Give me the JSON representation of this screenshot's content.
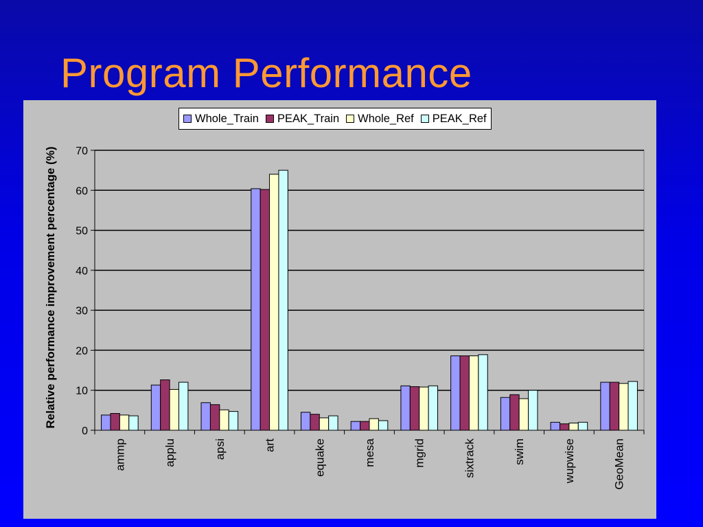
{
  "slide": {
    "title": "Program Performance"
  },
  "chart_data": {
    "type": "bar",
    "title": "",
    "xlabel": "",
    "ylabel": "Relative performance improvement percentage (%)",
    "ylim": [
      0,
      70
    ],
    "yticks": [
      0,
      10,
      20,
      30,
      40,
      50,
      60,
      70
    ],
    "grid": true,
    "legend_position": "top",
    "categories": [
      "ammp",
      "applu",
      "apsi",
      "art",
      "equake",
      "mesa",
      "mgrid",
      "sixtrack",
      "swim",
      "wupwise",
      "GeoMean"
    ],
    "series": [
      {
        "name": "Whole_Train",
        "color": "#9999ff",
        "values": [
          3.8,
          11.3,
          6.9,
          60.4,
          4.5,
          2.2,
          11.1,
          18.6,
          8.2,
          2.0,
          12.0
        ]
      },
      {
        "name": "PEAK_Train",
        "color": "#993366",
        "values": [
          4.2,
          12.6,
          6.4,
          60.2,
          4.0,
          2.2,
          10.9,
          18.6,
          8.9,
          1.6,
          12.0
        ]
      },
      {
        "name": "Whole_Ref",
        "color": "#ffffcc",
        "values": [
          3.8,
          10.2,
          5.1,
          64.0,
          3.1,
          2.9,
          10.8,
          18.6,
          7.9,
          1.8,
          11.7
        ]
      },
      {
        "name": "PEAK_Ref",
        "color": "#ccffff",
        "values": [
          3.6,
          12.0,
          4.7,
          65.0,
          3.6,
          2.4,
          11.1,
          18.9,
          10.0,
          2.0,
          12.2
        ]
      }
    ],
    "colors": {
      "plot_background": "#c0c0c0",
      "page_background": "#0000ff",
      "title": "#ff9933"
    }
  }
}
